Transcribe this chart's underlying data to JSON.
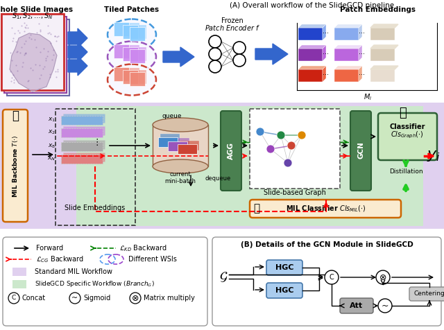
{
  "title_A": "(A) Overall workflow of the SlideGCD pipeline",
  "title_B": "(B) Details of the GCN Module in SlideGCD",
  "fig_bg": "#ffffff",
  "middle_bg": "#e0d0ef",
  "green_bg": "#cce8cc",
  "wsi_label": "Whole Slide Images",
  "wsi_sub": "$S_1, S_2, \\ldots, S_N$",
  "tiled_label": "Tiled Patches",
  "frozen_label": "Frozen\nPatch Encoder $f$",
  "patch_emb_label": "Patch Embeddings",
  "mi_label": "$M_i$",
  "queue_label": "queue",
  "current_mb_label": "current\nmini-batch",
  "dequeue_label": "dequeue",
  "agg_label": "AGG",
  "gcn_label": "GCN",
  "slide_graph_label": "Slide-based Graph",
  "classifier_label": "Classifier\n$Cls_{Graph}(\\cdot)$",
  "mil_classifier_label": "MIL Classifier $Cls_{MIL}(\\cdot)$",
  "mil_backbone_label": "MIL Backbone $T(\\cdot)$",
  "slide_emb_label": "Slide Embeddings",
  "distillation_label": "Distillation",
  "yi_label": "$y_i$",
  "color_blue_arrow": "#3366cc",
  "color_dark_green": "#3a7a3a",
  "color_agg_gcn": "#4a8050",
  "color_hgc_bg": "#aaccee",
  "color_att_bg": "#aaaaaa",
  "color_centering_bg": "#cccccc",
  "color_classifier_bg": "#c8e8c0",
  "color_mil_bg": "#fae8d0",
  "color_backbone_bg": "#fae8d0",
  "color_backbone_border": "#cc6600"
}
